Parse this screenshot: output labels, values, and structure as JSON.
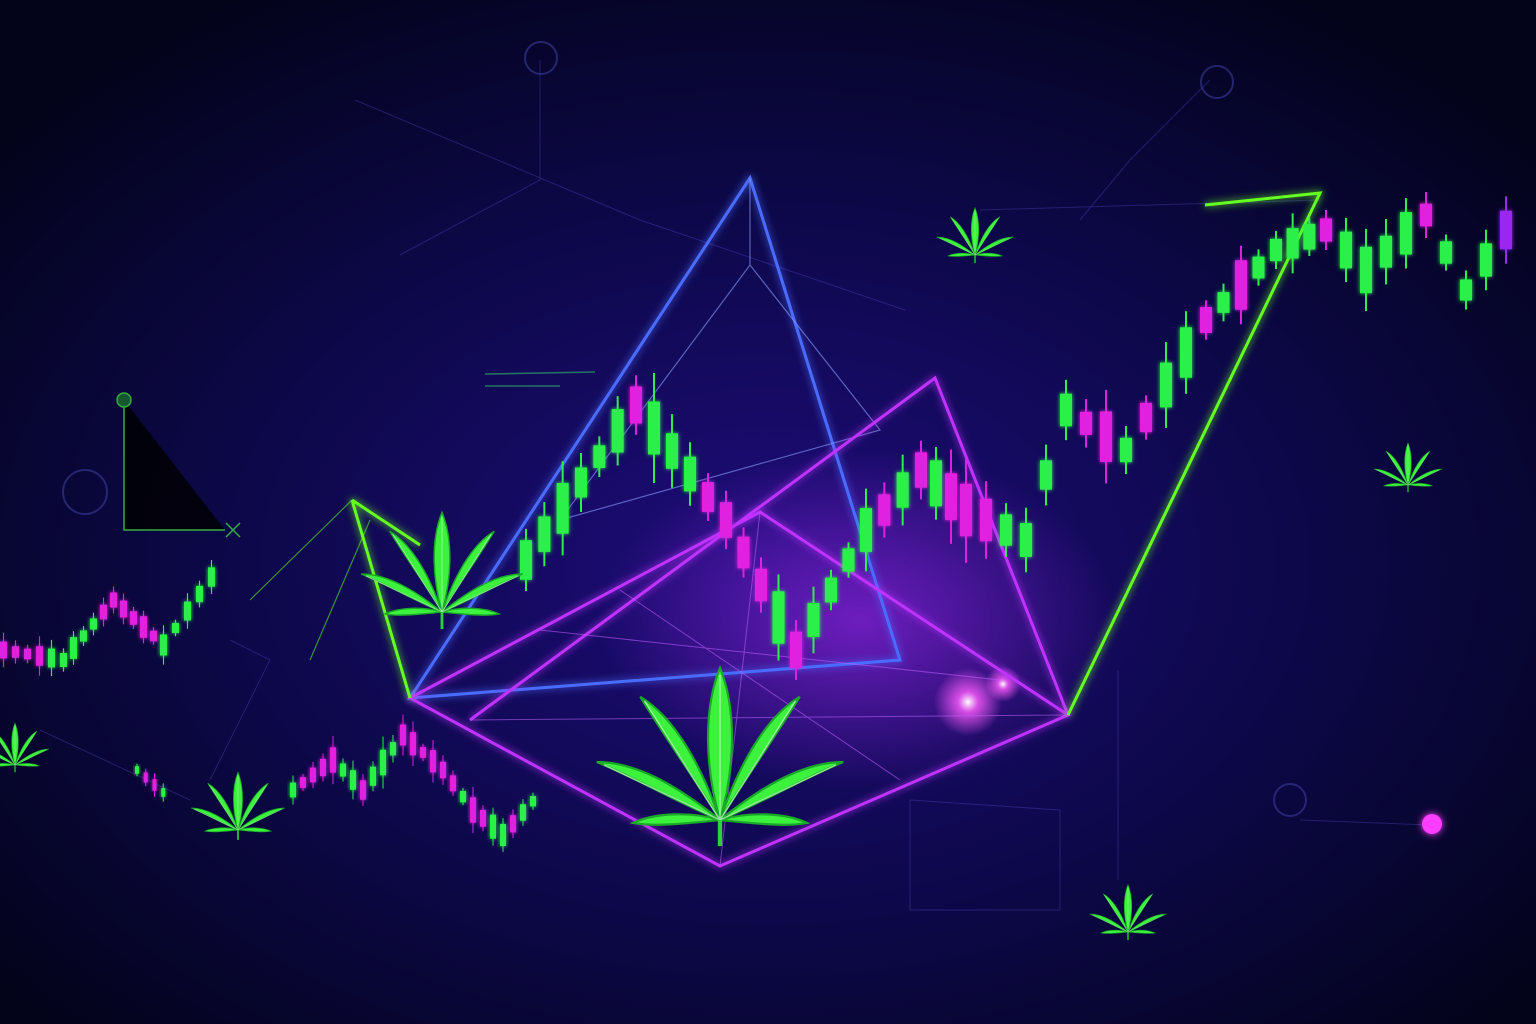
{
  "scene": {
    "description_free": true,
    "colors": {
      "background_top": "#04041f",
      "background_center": "#1a0a6e",
      "background_bottom": "#050530",
      "bullish": "#2cf04a",
      "bearish": "#e020e0",
      "bearish_violet": "#9a28f0",
      "outline_blue": "#4a6cff",
      "outline_purple": "#c030ff",
      "outline_green": "#66ff22",
      "leaf_green": "#3cf23c",
      "leaf_dark": "#1fae2a"
    },
    "icons": [
      "cannabis-leaf-icon",
      "crosshair-icon",
      "network-node-icon",
      "spark-icon"
    ],
    "candles_main": [
      [
        1,
        1,
        1,
        0
      ],
      [
        1,
        1,
        1,
        0
      ],
      [
        1,
        0,
        1,
        0
      ],
      [
        1,
        1,
        1,
        0
      ],
      [
        1,
        1,
        0,
        0
      ]
    ]
  }
}
